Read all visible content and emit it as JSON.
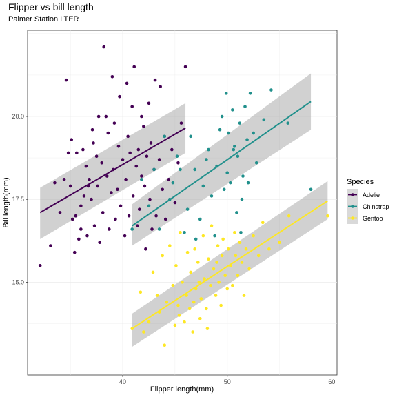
{
  "chart_data": {
    "type": "scatter",
    "title": "Flipper vs bill length",
    "subtitle": "Palmer Station LTER",
    "xlabel": "Flipper length(mm)",
    "ylabel": "Bill length(mm)",
    "xlim": [
      30.9,
      60.5
    ],
    "ylim": [
      12.2,
      22.6
    ],
    "x_ticks": [
      40,
      50,
      60
    ],
    "y_ticks": [
      15.0,
      17.5,
      20.0
    ],
    "y_tick_labels": [
      "15.0",
      "17.5",
      "20.0"
    ],
    "grid": true,
    "legend": {
      "title": "Species",
      "position": "right"
    },
    "series": [
      {
        "name": "Adelie",
        "color": "#440154",
        "fit": {
          "x": [
            32.1,
            46.0
          ],
          "y": [
            17.1,
            19.65
          ],
          "se_low": [
            16.3,
            18.9
          ],
          "se_high": [
            17.85,
            20.4
          ]
        },
        "points": [
          [
            32.1,
            15.5
          ],
          [
            33.1,
            16.1
          ],
          [
            33.5,
            18.0
          ],
          [
            34.0,
            17.1
          ],
          [
            34.4,
            18.1
          ],
          [
            34.6,
            21.1
          ],
          [
            35.0,
            17.9
          ],
          [
            35.1,
            19.3
          ],
          [
            35.2,
            16.9
          ],
          [
            35.4,
            15.9
          ],
          [
            35.5,
            17.0
          ],
          [
            35.6,
            18.9
          ],
          [
            35.8,
            16.3
          ],
          [
            36.0,
            17.3
          ],
          [
            36.0,
            16.6
          ],
          [
            36.2,
            19.0
          ],
          [
            36.3,
            17.6
          ],
          [
            36.5,
            18.5
          ],
          [
            36.6,
            16.4
          ],
          [
            36.8,
            18.1
          ],
          [
            37.0,
            17.5
          ],
          [
            37.2,
            19.2
          ],
          [
            37.3,
            16.7
          ],
          [
            37.5,
            18.8
          ],
          [
            37.6,
            17.9
          ],
          [
            37.7,
            20.0
          ],
          [
            37.8,
            16.2
          ],
          [
            38.0,
            18.6
          ],
          [
            38.1,
            17.1
          ],
          [
            38.2,
            22.1
          ],
          [
            38.5,
            18.2
          ],
          [
            38.6,
            19.5
          ],
          [
            38.7,
            16.6
          ],
          [
            38.9,
            17.7
          ],
          [
            39.0,
            21.2
          ],
          [
            39.1,
            18.4
          ],
          [
            39.2,
            19.8
          ],
          [
            39.3,
            16.9
          ],
          [
            39.5,
            17.8
          ],
          [
            39.6,
            19.1
          ],
          [
            39.7,
            20.6
          ],
          [
            39.8,
            17.3
          ],
          [
            40.0,
            18.7
          ],
          [
            40.2,
            16.4
          ],
          [
            40.3,
            18.1
          ],
          [
            40.5,
            19.4
          ],
          [
            40.6,
            17.0
          ],
          [
            40.7,
            18.9
          ],
          [
            40.9,
            20.3
          ],
          [
            41.0,
            17.6
          ],
          [
            41.1,
            21.5
          ],
          [
            41.3,
            18.5
          ],
          [
            41.4,
            16.7
          ],
          [
            41.5,
            19.0
          ],
          [
            41.6,
            17.2
          ],
          [
            41.8,
            18.2
          ],
          [
            42.0,
            19.7
          ],
          [
            42.1,
            17.9
          ],
          [
            42.2,
            16.0
          ],
          [
            42.3,
            18.8
          ],
          [
            42.5,
            20.4
          ],
          [
            42.6,
            17.5
          ],
          [
            42.7,
            19.2
          ],
          [
            42.8,
            16.6
          ],
          [
            43.0,
            18.4
          ],
          [
            43.1,
            21.1
          ],
          [
            43.2,
            17.0
          ],
          [
            43.5,
            18.7
          ],
          [
            43.6,
            20.9
          ],
          [
            43.8,
            17.8
          ],
          [
            44.0,
            19.4
          ],
          [
            44.1,
            16.9
          ],
          [
            44.4,
            18.1
          ],
          [
            44.7,
            19.0
          ],
          [
            45.0,
            17.4
          ],
          [
            45.3,
            18.6
          ],
          [
            45.6,
            19.8
          ],
          [
            46.0,
            21.5
          ],
          [
            34.8,
            18.9
          ],
          [
            37.1,
            19.6
          ],
          [
            38.4,
            20.0
          ],
          [
            40.4,
            21.0
          ],
          [
            41.8,
            20.0
          ],
          [
            36.7,
            17.9
          ]
        ]
      },
      {
        "name": "Chinstrap",
        "color": "#21908C",
        "fit": {
          "x": [
            40.9,
            58.0
          ],
          "y": [
            16.7,
            20.45
          ],
          "se_low": [
            16.1,
            19.6
          ],
          "se_high": [
            17.35,
            21.3
          ]
        },
        "points": [
          [
            40.9,
            16.6
          ],
          [
            41.8,
            18.1
          ],
          [
            42.5,
            17.3
          ],
          [
            43.0,
            18.4
          ],
          [
            43.5,
            16.6
          ],
          [
            44.0,
            19.4
          ],
          [
            44.5,
            17.5
          ],
          [
            45.2,
            18.8
          ],
          [
            45.5,
            18.4
          ],
          [
            45.9,
            16.5
          ],
          [
            46.2,
            17.2
          ],
          [
            46.5,
            19.4
          ],
          [
            46.9,
            18.4
          ],
          [
            47.0,
            16.3
          ],
          [
            47.4,
            16.9
          ],
          [
            47.7,
            17.9
          ],
          [
            48.2,
            19.0
          ],
          [
            48.5,
            17.6
          ],
          [
            48.8,
            16.4
          ],
          [
            49.0,
            18.5
          ],
          [
            49.3,
            19.6
          ],
          [
            49.5,
            20.0
          ],
          [
            49.7,
            17.8
          ],
          [
            50.0,
            18.3
          ],
          [
            50.1,
            19.5
          ],
          [
            50.3,
            18.0
          ],
          [
            50.5,
            20.2
          ],
          [
            50.7,
            19.1
          ],
          [
            50.9,
            17.1
          ],
          [
            51.0,
            18.8
          ],
          [
            51.2,
            19.8
          ],
          [
            51.3,
            16.5
          ],
          [
            51.5,
            18.2
          ],
          [
            51.7,
            20.3
          ],
          [
            51.9,
            19.3
          ],
          [
            52.0,
            18.0
          ],
          [
            52.2,
            20.7
          ],
          [
            52.5,
            19.5
          ],
          [
            52.8,
            18.6
          ],
          [
            53.5,
            19.9
          ],
          [
            54.2,
            20.8
          ],
          [
            55.8,
            19.8
          ],
          [
            58.0,
            17.8
          ],
          [
            44.8,
            18.0
          ],
          [
            48.0,
            18.7
          ],
          [
            49.9,
            20.7
          ],
          [
            50.6,
            19.0
          ],
          [
            51.4,
            17.5
          ]
        ]
      },
      {
        "name": "Gentoo",
        "color": "#FDE725",
        "fit": {
          "x": [
            40.9,
            59.6
          ],
          "y": [
            13.6,
            17.45
          ],
          "se_low": [
            13.05,
            16.9
          ],
          "se_high": [
            14.05,
            18.05
          ]
        },
        "points": [
          [
            40.9,
            13.6
          ],
          [
            41.7,
            14.7
          ],
          [
            42.0,
            13.5
          ],
          [
            42.5,
            13.8
          ],
          [
            42.9,
            15.3
          ],
          [
            43.3,
            14.6
          ],
          [
            43.5,
            14.1
          ],
          [
            43.8,
            15.8
          ],
          [
            44.0,
            13.1
          ],
          [
            44.2,
            14.4
          ],
          [
            44.5,
            16.1
          ],
          [
            44.8,
            14.9
          ],
          [
            45.0,
            13.7
          ],
          [
            45.1,
            15.5
          ],
          [
            45.3,
            14.3
          ],
          [
            45.5,
            16.5
          ],
          [
            45.7,
            15.0
          ],
          [
            45.9,
            13.8
          ],
          [
            46.1,
            14.6
          ],
          [
            46.2,
            15.9
          ],
          [
            46.4,
            14.2
          ],
          [
            46.5,
            15.3
          ],
          [
            46.7,
            13.5
          ],
          [
            46.9,
            16.0
          ],
          [
            47.0,
            14.8
          ],
          [
            47.2,
            15.6
          ],
          [
            47.4,
            13.9
          ],
          [
            47.5,
            14.5
          ],
          [
            47.7,
            16.4
          ],
          [
            47.8,
            15.1
          ],
          [
            48.0,
            14.2
          ],
          [
            48.2,
            15.7
          ],
          [
            48.4,
            14.9
          ],
          [
            48.5,
            16.7
          ],
          [
            48.7,
            15.4
          ],
          [
            48.9,
            14.6
          ],
          [
            49.1,
            16.1
          ],
          [
            49.2,
            15.0
          ],
          [
            49.4,
            14.3
          ],
          [
            49.5,
            15.8
          ],
          [
            49.6,
            16.3
          ],
          [
            49.8,
            15.2
          ],
          [
            50.0,
            14.8
          ],
          [
            50.1,
            16.0
          ],
          [
            50.3,
            15.5
          ],
          [
            50.5,
            14.9
          ],
          [
            50.7,
            16.5
          ],
          [
            50.8,
            15.8
          ],
          [
            51.0,
            15.2
          ],
          [
            51.2,
            16.2
          ],
          [
            51.4,
            15.6
          ],
          [
            51.6,
            14.6
          ],
          [
            51.8,
            16.0
          ],
          [
            52.1,
            15.4
          ],
          [
            52.5,
            16.4
          ],
          [
            53.0,
            15.8
          ],
          [
            53.4,
            16.8
          ],
          [
            54.0,
            16.0
          ],
          [
            55.0,
            16.2
          ],
          [
            55.9,
            17.0
          ],
          [
            59.6,
            17.0
          ],
          [
            45.4,
            14.0
          ],
          [
            46.8,
            14.4
          ],
          [
            47.3,
            15.0
          ],
          [
            48.1,
            13.6
          ],
          [
            49.0,
            15.6
          ]
        ]
      }
    ]
  }
}
